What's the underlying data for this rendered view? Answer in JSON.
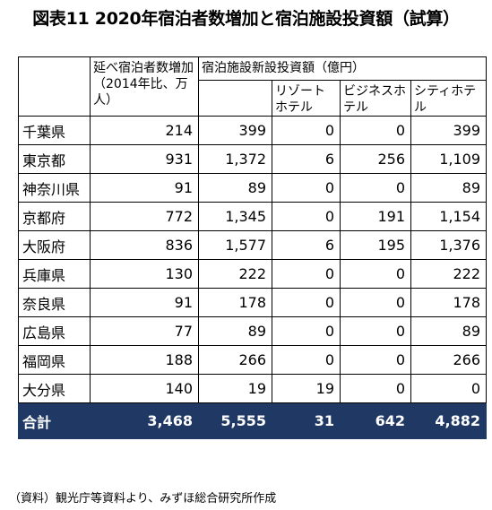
{
  "title": "図表11 2020年宿泊者数増加と宿泊施設投資額（試算）",
  "headers": {
    "guests": "延べ宿泊者数増加（2014年比、万人）",
    "investment": "宿泊施設新設投資額（億円）",
    "resort": "リゾートホテル",
    "business": "ビジネスホテル",
    "city": "シティホテル"
  },
  "rows": [
    {
      "name": "千葉県",
      "guests": "214",
      "investment": "399",
      "resort": "0",
      "business": "0",
      "city": "399"
    },
    {
      "name": "東京都",
      "guests": "931",
      "investment": "1,372",
      "resort": "6",
      "business": "256",
      "city": "1,109"
    },
    {
      "name": "神奈川県",
      "guests": "91",
      "investment": "89",
      "resort": "0",
      "business": "0",
      "city": "89"
    },
    {
      "name": "京都府",
      "guests": "772",
      "investment": "1,345",
      "resort": "0",
      "business": "191",
      "city": "1,154"
    },
    {
      "name": "大阪府",
      "guests": "836",
      "investment": "1,577",
      "resort": "6",
      "business": "195",
      "city": "1,376"
    },
    {
      "name": "兵庫県",
      "guests": "130",
      "investment": "222",
      "resort": "0",
      "business": "0",
      "city": "222"
    },
    {
      "name": "奈良県",
      "guests": "91",
      "investment": "178",
      "resort": "0",
      "business": "0",
      "city": "178"
    },
    {
      "name": "広島県",
      "guests": "77",
      "investment": "89",
      "resort": "0",
      "business": "0",
      "city": "89"
    },
    {
      "name": "福岡県",
      "guests": "188",
      "investment": "266",
      "resort": "0",
      "business": "0",
      "city": "266"
    },
    {
      "name": "大分県",
      "guests": "140",
      "investment": "19",
      "resort": "19",
      "business": "0",
      "city": "0"
    }
  ],
  "total": {
    "name": "合計",
    "guests": "3,468",
    "investment": "5,555",
    "resort": "31",
    "business": "642",
    "city": "4,882"
  },
  "footnote": "（資料）観光庁等資料より、みずほ総合研究所作成",
  "colors": {
    "total_row_bg": "#1f3864",
    "total_row_text": "#ffffff"
  }
}
